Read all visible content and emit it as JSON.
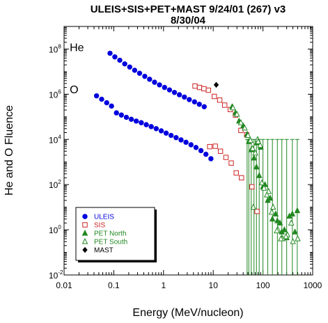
{
  "chart_data": {
    "type": "scatter",
    "title_lines": [
      "ULEIS+SIS+PET+MAST 9/24/01 (267) v3",
      "8/30/04"
    ],
    "xlabel": "Energy (MeV/nucleon)",
    "ylabel": "He and O Fluence",
    "x_scale": "log",
    "y_scale": "log",
    "xlim": [
      0.01,
      1000
    ],
    "ylim": [
      0.01,
      1000000000
    ],
    "x_ticks": [
      {
        "value": 0.01,
        "label": "0.01"
      },
      {
        "value": 0.1,
        "label": "0.1"
      },
      {
        "value": 1,
        "label": "1"
      },
      {
        "value": 10,
        "label": "10"
      },
      {
        "value": 100,
        "label": "100"
      },
      {
        "value": 1000,
        "label": "1000"
      }
    ],
    "y_ticks": [
      {
        "value": 0.01,
        "base": "10",
        "exp": "-2"
      },
      {
        "value": 1,
        "base": "10",
        "exp": "0"
      },
      {
        "value": 100,
        "base": "10",
        "exp": "2"
      },
      {
        "value": 10000,
        "base": "10",
        "exp": "4"
      },
      {
        "value": 1000000,
        "base": "10",
        "exp": "6"
      },
      {
        "value": 100000000,
        "base": "10",
        "exp": "8"
      }
    ],
    "grid": false,
    "panel_labels": [
      {
        "text": "He",
        "x": 0.013,
        "y": 80000000
      },
      {
        "text": "O",
        "x": 0.013,
        "y": 1100000
      }
    ],
    "legend_position": "bottom-left",
    "series": [
      {
        "name": "ULEIS",
        "color": "#0000dd",
        "marker": "filled-circle",
        "points": [
          [
            0.084,
            65000000.0
          ],
          [
            0.105,
            45000000.0
          ],
          [
            0.132,
            32000000.0
          ],
          [
            0.166,
            22000000.0
          ],
          [
            0.209,
            16000000.0
          ],
          [
            0.263,
            11500000.0
          ],
          [
            0.33,
            8500000.0
          ],
          [
            0.42,
            6200000.0
          ],
          [
            0.525,
            4600000.0
          ],
          [
            0.66,
            3400000.0
          ],
          [
            0.83,
            2600000.0
          ],
          [
            1.05,
            2000000.0
          ],
          [
            1.32,
            1550000.0
          ],
          [
            1.66,
            1200000.0
          ],
          [
            2.09,
            950000.0
          ],
          [
            2.63,
            750000.0
          ],
          [
            3.3,
            580000.0
          ],
          [
            4.2,
            460000.0
          ],
          [
            5.25,
            360000.0
          ],
          [
            6.6,
            280000.0
          ],
          [
            0.045,
            850000.0
          ],
          [
            0.057,
            600000.0
          ],
          [
            0.072,
            420000.0
          ],
          [
            0.09,
            300000.0
          ],
          [
            0.113,
            150000.0
          ],
          [
            0.142,
            120000.0
          ],
          [
            0.179,
            95000.0
          ],
          [
            0.225,
            78000.0
          ],
          [
            0.283,
            65000.0
          ],
          [
            0.357,
            55000.0
          ],
          [
            0.45,
            45000.0
          ],
          [
            0.566,
            37000.0
          ],
          [
            0.713,
            30000.0
          ],
          [
            0.9,
            24000.0
          ],
          [
            1.13,
            19000.0
          ],
          [
            1.42,
            15000.0
          ],
          [
            1.79,
            12000.0
          ],
          [
            2.25,
            9500.0
          ],
          [
            2.83,
            7500.0
          ],
          [
            3.57,
            5800.0
          ],
          [
            4.5,
            4400.0
          ],
          [
            5.66,
            3200.0
          ],
          [
            7.13,
            2200.0
          ],
          [
            8.98,
            1400.0
          ]
        ]
      },
      {
        "name": "SIS",
        "color": "#cc2222",
        "marker": "open-square",
        "points": [
          [
            4.3,
            2300000.0
          ],
          [
            5.3,
            2000000.0
          ],
          [
            6.5,
            1750000.0
          ],
          [
            8.0,
            1500000.0
          ],
          [
            10.5,
            800000.0
          ],
          [
            13.5,
            550000.0
          ],
          [
            17.0,
            330000.0
          ],
          [
            22.0,
            210000.0
          ],
          [
            28.0,
            120000.0
          ],
          [
            36.0,
            25000.0
          ],
          [
            8.5,
            4800.0
          ],
          [
            11.0,
            5000.0
          ],
          [
            14.0,
            3000.0
          ],
          [
            18.0,
            1600.0
          ],
          [
            23.0,
            900.0
          ],
          [
            29.0,
            330.0
          ],
          [
            37.0,
            200.0
          ],
          [
            47.0,
            16000.0
          ],
          [
            60.0,
            80.0
          ],
          [
            76.0,
            6.5
          ]
        ]
      },
      {
        "name": "PET North",
        "color": "#228822",
        "marker": "filled-triangle",
        "points": [
          [
            24.0,
            280000.0
          ],
          [
            28.0,
            150000.0
          ],
          [
            33.0,
            65000.0
          ],
          [
            40.0,
            40000.0
          ],
          [
            48.0,
            17000.0
          ],
          [
            52.0,
            8000.0
          ],
          [
            58.0,
            3500.0
          ],
          [
            66.0,
            1500.0
          ],
          [
            74.0,
            600.0
          ],
          [
            84.0,
            250.0
          ],
          [
            100.0,
            80.0
          ],
          [
            125.0,
            20.0
          ],
          [
            155.0,
            3.0
          ],
          [
            195.0,
            2.5
          ],
          [
            240.0,
            0.8
          ],
          [
            300.0,
            0.45
          ],
          [
            390.0,
            5.0
          ],
          [
            490.0,
            7.0
          ],
          [
            75.0,
            7000.0
          ],
          [
            90.0,
            4500.0
          ],
          [
            110.0,
            100.0
          ],
          [
            140.0,
            25.0
          ],
          [
            180.0,
            5.0
          ],
          [
            220.0,
            2.0
          ],
          [
            270.0,
            1.0
          ],
          [
            340.0,
            4.0
          ],
          [
            440.0,
            0.8
          ]
        ]
      },
      {
        "name": "PET South",
        "color": "#228822",
        "marker": "open-triangle",
        "points": [
          [
            25.0,
            250000.0
          ],
          [
            30.0,
            130000.0
          ],
          [
            36.0,
            55000.0
          ],
          [
            43.0,
            32000.0
          ],
          [
            50.0,
            15000.0
          ],
          [
            56.0,
            9000.0
          ],
          [
            62.0,
            4000.0
          ],
          [
            70.0,
            2500.0
          ],
          [
            78.0,
            10000.0
          ],
          [
            88.0,
            5500.0
          ],
          [
            105.0,
            70.0
          ],
          [
            130.0,
            50.0
          ],
          [
            160.0,
            10.0
          ],
          [
            200.0,
            1.0
          ],
          [
            250.0,
            0.4
          ],
          [
            310.0,
            0.6
          ],
          [
            400.0,
            0.3
          ],
          [
            500.0,
            0.4
          ],
          [
            64.0,
            10.0
          ],
          [
            80.0,
            8000.0
          ],
          [
            95.0,
            120.0
          ],
          [
            120.0,
            35.0
          ],
          [
            150.0,
            6.0
          ],
          [
            190.0,
            0.9
          ],
          [
            230.0,
            0.4
          ],
          [
            290.0,
            0.5
          ],
          [
            370.0,
            2.0
          ]
        ]
      },
      {
        "name": "MAST",
        "color": "#000000",
        "marker": "filled-diamond",
        "points": [
          [
            11.5,
            2600000.0
          ]
        ]
      }
    ],
    "error_bars": {
      "color": "#228822",
      "upper": 10000.0,
      "lower": 0.01,
      "x": [
        48,
        52,
        58,
        66,
        74,
        84,
        100,
        125,
        155,
        195,
        240,
        300,
        390,
        490
      ]
    }
  }
}
